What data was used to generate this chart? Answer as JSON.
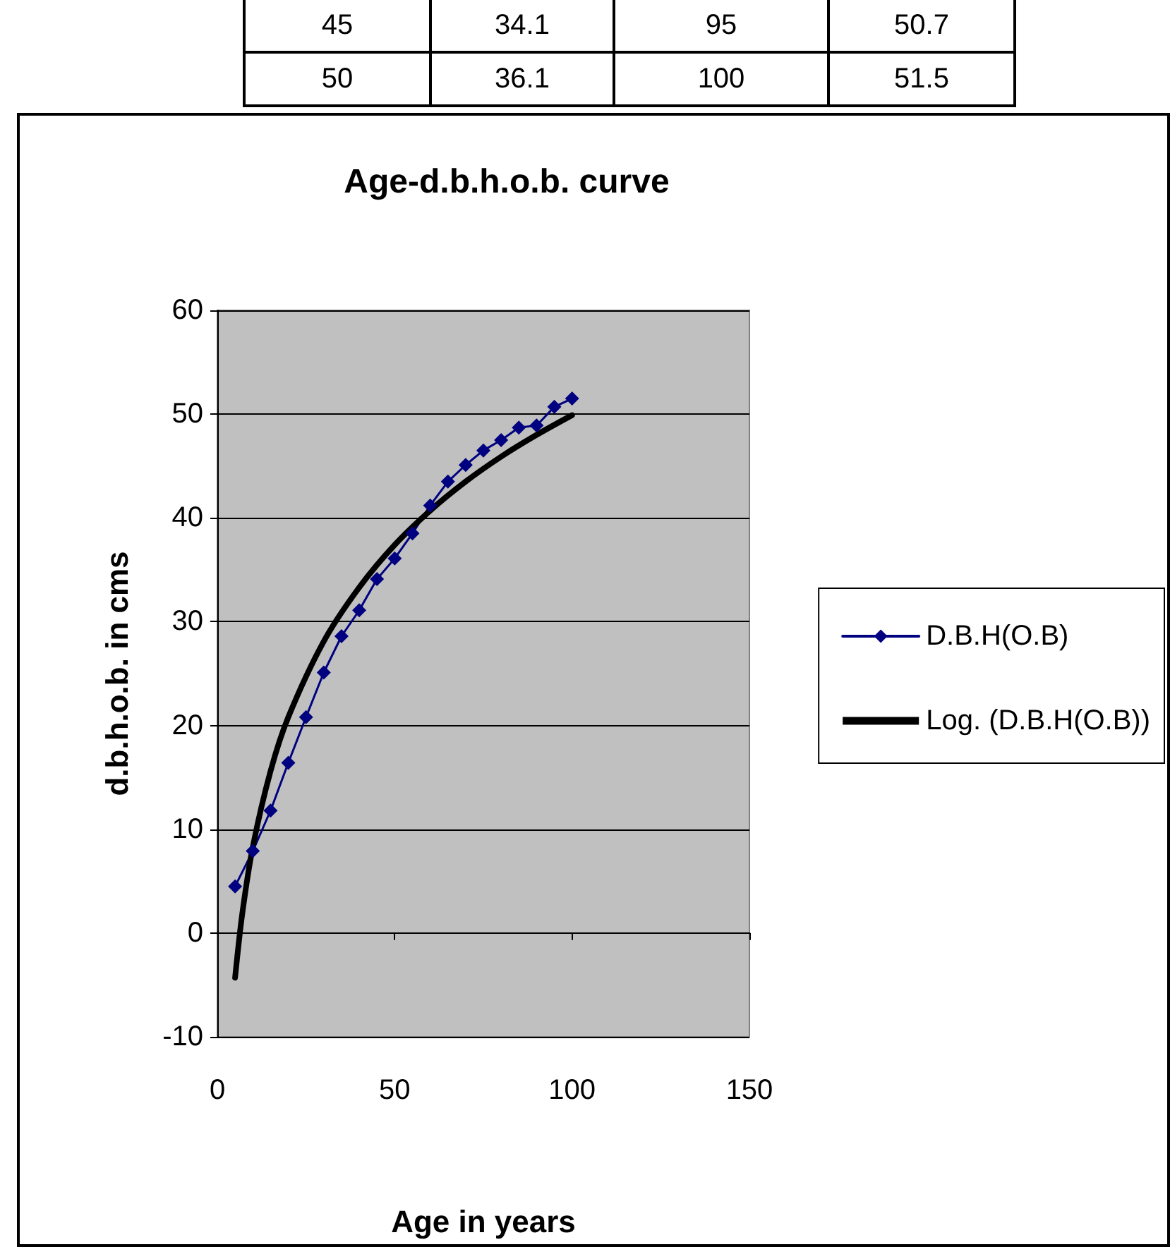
{
  "chart_data": [
    {
      "type": "other",
      "annotations": [
        "45",
        "34.1",
        "95",
        "50.7",
        "50",
        "36.1",
        "100",
        "51.5"
      ]
    },
    {
      "type": "line",
      "title": "Age-d.b.h.o.b. curve",
      "xlabel": "Age in years",
      "ylabel": "d.b.h.o.b. in cms",
      "xlim": [
        0,
        150
      ],
      "xticks": [
        0,
        50,
        100,
        150
      ],
      "ylim": [
        -10,
        60
      ],
      "yticks": [
        -10,
        0,
        10,
        20,
        30,
        40,
        50,
        60
      ],
      "grid": "y",
      "legend": "right",
      "marker": "diamond",
      "line_style": "solid",
      "series": [
        {
          "name": "D.B.H(O.B)",
          "color": "#000080",
          "x": [
            5,
            10,
            15,
            20,
            25,
            30,
            35,
            40,
            45,
            50,
            55,
            60,
            65,
            70,
            75,
            80,
            85,
            90,
            95,
            100
          ],
          "values": [
            4.5,
            7.9,
            11.8,
            16.4,
            20.8,
            25.1,
            28.6,
            31.1,
            34.1,
            36.1,
            38.5,
            41.2,
            43.5,
            45.1,
            46.5,
            47.5,
            48.7,
            48.9,
            50.7,
            51.5
          ]
        },
        {
          "name": "Log. (D.B.H(O.B))",
          "color": "#000000",
          "marker": "none",
          "x": [
            5,
            7,
            10,
            15,
            20,
            30,
            40,
            50,
            60,
            70,
            80,
            90,
            100
          ],
          "values": [
            -4.3,
            1.8,
            8.3,
            15.6,
            20.8,
            28.1,
            33.3,
            37.4,
            40.7,
            43.5,
            45.9,
            48.0,
            49.9
          ]
        }
      ]
    }
  ]
}
